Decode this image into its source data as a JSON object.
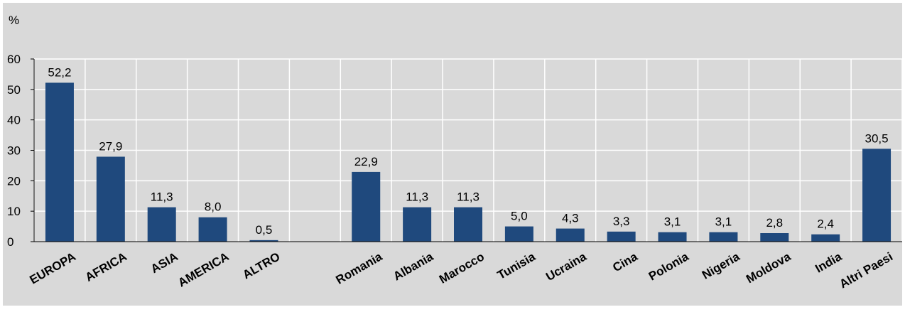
{
  "chart_data": {
    "type": "bar",
    "ylabel": "%",
    "ylim": [
      0,
      60
    ],
    "yticks": [
      0,
      10,
      20,
      30,
      40,
      50,
      60
    ],
    "grid": true,
    "categories": [
      "EUROPA",
      "AFRICA",
      "ASIA",
      "AMERICA",
      "ALTRO",
      "",
      "Romania",
      "Albania",
      "Marocco",
      "Tunisia",
      "Ucraina",
      "Cina",
      "Polonia",
      "Nigeria",
      "Moldova",
      "India",
      "Altri Paesi"
    ],
    "values": [
      52.2,
      27.9,
      11.3,
      8.0,
      0.5,
      null,
      22.9,
      11.3,
      11.3,
      5.0,
      4.3,
      3.3,
      3.1,
      3.1,
      2.8,
      2.4,
      30.5
    ],
    "value_labels": [
      "52,2",
      "27,9",
      "11,3",
      "8,0",
      "0,5",
      "",
      "22,9",
      "11,3",
      "11,3",
      "5,0",
      "4,3",
      "3,3",
      "3,1",
      "3,1",
      "2,8",
      "2,4",
      "30,5"
    ],
    "bold_categories": [
      "EUROPA",
      "AFRICA",
      "ASIA",
      "AMERICA",
      "ALTRO"
    ],
    "colors": {
      "bar": "#1f497d",
      "background": "#d9d9d9",
      "grid": "#ffffff",
      "axis": "#000000"
    }
  }
}
